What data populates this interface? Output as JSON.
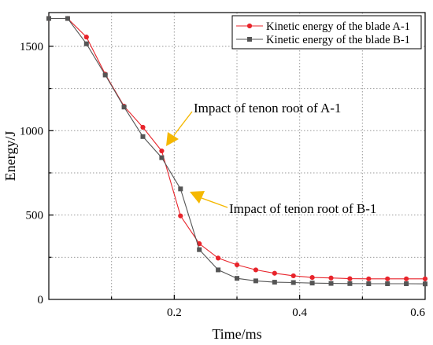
{
  "chart_data": {
    "type": "line",
    "xlabel": "Time/ms",
    "ylabel": "Energy/J",
    "xlim": [
      0,
      0.6
    ],
    "ylim": [
      0,
      1700
    ],
    "xticks": [
      "0.2",
      "0.4",
      "0.6"
    ],
    "yticks": [
      "0",
      "500",
      "1000",
      "1500"
    ],
    "grid": true,
    "legend_position": "top-right",
    "series": [
      {
        "name": "Kinetic energy of the blade A-1",
        "color": "#e8242b",
        "marker": "circle",
        "x": [
          0,
          0.03,
          0.06,
          0.09,
          0.12,
          0.15,
          0.18,
          0.21,
          0.24,
          0.27,
          0.3,
          0.33,
          0.36,
          0.39,
          0.42,
          0.45,
          0.48,
          0.51,
          0.54,
          0.57,
          0.6
        ],
        "y": [
          1665,
          1665,
          1555,
          1335,
          1145,
          1020,
          880,
          495,
          330,
          245,
          205,
          175,
          155,
          140,
          130,
          127,
          123,
          122,
          122,
          122,
          122
        ]
      },
      {
        "name": "Kinetic energy of the blade B-1",
        "color": "#555555",
        "marker": "square",
        "x": [
          0,
          0.03,
          0.06,
          0.09,
          0.12,
          0.15,
          0.18,
          0.21,
          0.24,
          0.27,
          0.3,
          0.33,
          0.36,
          0.39,
          0.42,
          0.45,
          0.48,
          0.51,
          0.54,
          0.57,
          0.6
        ],
        "y": [
          1665,
          1665,
          1515,
          1330,
          1140,
          965,
          840,
          655,
          295,
          175,
          125,
          110,
          102,
          100,
          97,
          95,
          94,
          93,
          93,
          93,
          92
        ]
      }
    ],
    "annotations": [
      {
        "text": "Impact of tenon root of A-1",
        "points_to": {
          "x": 0.18,
          "y": 880
        },
        "color": "#f5b800"
      },
      {
        "text": "Impact of tenon root of B-1",
        "points_to": {
          "x": 0.21,
          "y": 655
        },
        "color": "#f5b800"
      }
    ]
  }
}
